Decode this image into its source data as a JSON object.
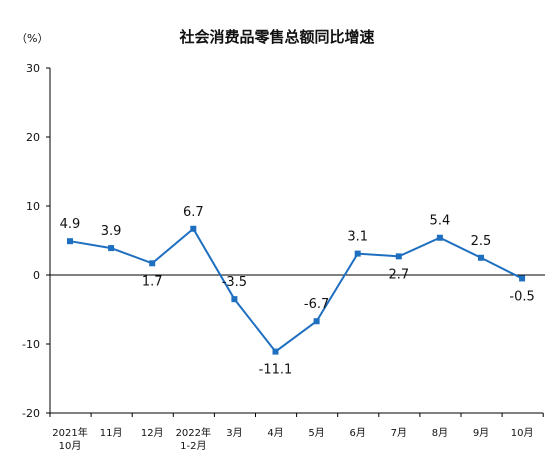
{
  "chart_data": {
    "type": "line",
    "title": "社会消费品零售总额同比增速",
    "unit": "（%）",
    "categories": [
      [
        "2021年",
        "10月"
      ],
      [
        "11月"
      ],
      [
        "12月"
      ],
      [
        "2022年",
        "1-2月"
      ],
      [
        "3月"
      ],
      [
        "4月"
      ],
      [
        "5月"
      ],
      [
        "6月"
      ],
      [
        "7月"
      ],
      [
        "8月"
      ],
      [
        "9月"
      ],
      [
        "10月"
      ]
    ],
    "values": [
      4.9,
      3.9,
      1.7,
      6.7,
      -3.5,
      -11.1,
      -6.7,
      3.1,
      2.7,
      5.4,
      2.5,
      -0.5
    ],
    "data_labels": [
      "4.9",
      "3.9",
      "1.7",
      "6.7",
      "-3.5",
      "-11.1",
      "-6.7",
      "3.1",
      "2.7",
      "5.4",
      "2.5",
      "-0.5"
    ],
    "ylim": [
      -20,
      30
    ],
    "yticks": [
      -20,
      -10,
      0,
      10,
      20,
      30
    ],
    "grid": false,
    "line_color": "#1f6fc0"
  }
}
